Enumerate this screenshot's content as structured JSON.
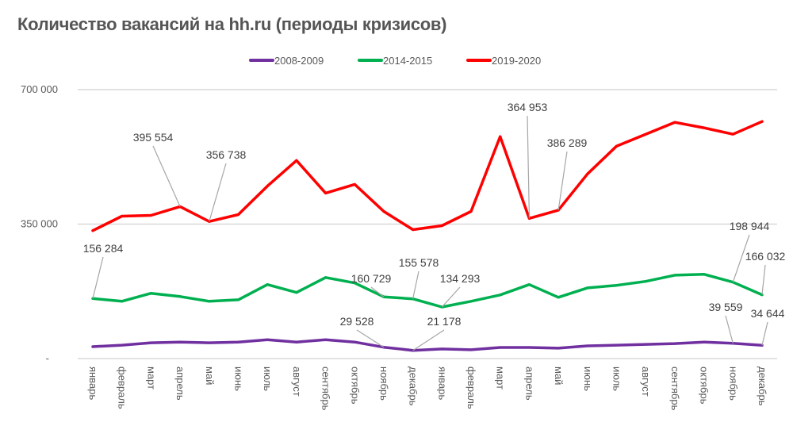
{
  "chart_data": {
    "type": "line",
    "title": "Количество вакансий на hh.ru (периоды кризисов)",
    "xlabel": "",
    "ylabel": "",
    "ylim": [
      0,
      700000
    ],
    "yticks": [
      {
        "value": 0,
        "label": "-"
      },
      {
        "value": 350000,
        "label": "350 000"
      },
      {
        "value": 700000,
        "label": "700 000"
      }
    ],
    "grid": true,
    "legend_position": "top",
    "categories": [
      "январь",
      "февраль",
      "март",
      "апрель",
      "май",
      "июнь",
      "июль",
      "август",
      "сентябрь",
      "октябрь",
      "ноябрь",
      "декабрь",
      "январь",
      "февраль",
      "март",
      "апрель",
      "май",
      "июнь",
      "июль",
      "август",
      "сентябрь",
      "октябрь",
      "ноябрь",
      "декабрь"
    ],
    "series": [
      {
        "name": "2008-2009",
        "color": "#7030a0",
        "values": [
          31000,
          35000,
          41000,
          43000,
          41000,
          43000,
          49000,
          43000,
          49000,
          43000,
          29528,
          21178,
          25000,
          23000,
          29000,
          29000,
          27000,
          33000,
          35000,
          37000,
          39000,
          43000,
          39559,
          34644
        ]
      },
      {
        "name": "2014-2015",
        "color": "#00b050",
        "values": [
          156284,
          149000,
          170000,
          161500,
          149000,
          153000,
          192600,
          172000,
          211000,
          196700,
          160729,
          155578,
          134293,
          149000,
          165700,
          192600,
          159500,
          184000,
          190500,
          201000,
          217000,
          219500,
          198944,
          166032
        ]
      },
      {
        "name": "2019-2020",
        "color": "#ff0000",
        "values": [
          333000,
          370700,
          372800,
          395554,
          356738,
          374800,
          449000,
          515700,
          430800,
          453500,
          383000,
          335500,
          345900,
          383000,
          577800,
          364953,
          386289,
          480500,
          553000,
          584000,
          615000,
          600600,
          584000,
          617000
        ]
      }
    ],
    "annotations": [
      {
        "series": 2,
        "index": 3,
        "text": "395 554"
      },
      {
        "series": 2,
        "index": 4,
        "text": "356 738"
      },
      {
        "series": 2,
        "index": 15,
        "text": "364 953"
      },
      {
        "series": 2,
        "index": 16,
        "text": "386 289"
      },
      {
        "series": 1,
        "index": 0,
        "text": "156 284"
      },
      {
        "series": 1,
        "index": 10,
        "text": "160 729"
      },
      {
        "series": 1,
        "index": 11,
        "text": "155 578"
      },
      {
        "series": 1,
        "index": 12,
        "text": "134 293"
      },
      {
        "series": 1,
        "index": 22,
        "text": "198 944"
      },
      {
        "series": 1,
        "index": 23,
        "text": "166 032"
      },
      {
        "series": 0,
        "index": 10,
        "text": "29 528"
      },
      {
        "series": 0,
        "index": 11,
        "text": "21 178"
      },
      {
        "series": 0,
        "index": 22,
        "text": "39 559"
      },
      {
        "series": 0,
        "index": 23,
        "text": "34 644"
      }
    ]
  }
}
